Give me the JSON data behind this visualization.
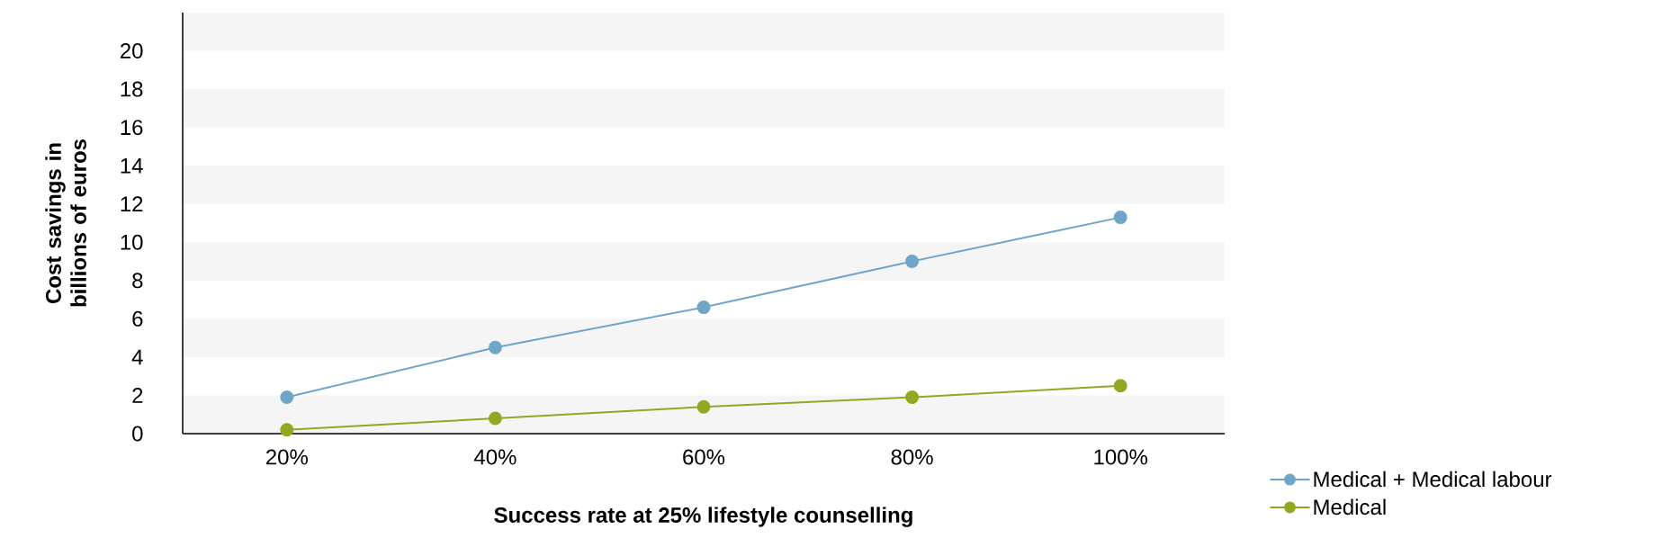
{
  "chart_data": {
    "type": "line",
    "xlabel": "Success rate at 25% lifestyle counselling",
    "ylabel": "Cost savings in billions of euros",
    "categories": [
      "20%",
      "40%",
      "60%",
      "80%",
      "100%"
    ],
    "series": [
      {
        "name": "Medical + Medical labour",
        "color": "#6fa6c8",
        "values": [
          1.9,
          4.5,
          6.6,
          9.0,
          11.3
        ]
      },
      {
        "name": "Medical",
        "color": "#93a822",
        "values": [
          0.2,
          0.8,
          1.4,
          1.9,
          2.5
        ]
      }
    ],
    "ylim": [
      0,
      22
    ],
    "yticks": [
      0,
      2,
      4,
      6,
      8,
      10,
      12,
      14,
      16,
      18,
      20
    ],
    "bands": [
      {
        "axis": "y",
        "from": 0,
        "to": 2,
        "color": "#f5f5f5"
      },
      {
        "axis": "y",
        "from": 4,
        "to": 6,
        "color": "#f5f5f5"
      },
      {
        "axis": "y",
        "from": 8,
        "to": 10,
        "color": "#f5f5f5"
      },
      {
        "axis": "y",
        "from": 12,
        "to": 14,
        "color": "#f5f5f5"
      },
      {
        "axis": "y",
        "from": 16,
        "to": 18,
        "color": "#f5f5f5"
      },
      {
        "axis": "y",
        "from": 20,
        "to": 22,
        "color": "#f5f5f5"
      }
    ],
    "marker": "circle",
    "line_style": "solid",
    "legend": "bottom right"
  }
}
